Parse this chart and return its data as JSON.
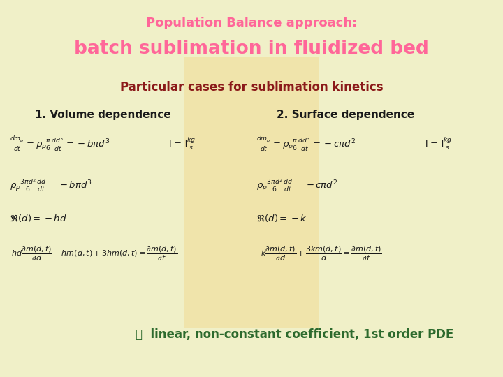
{
  "bg_color": "#f0f0c8",
  "title_line1": "Population Balance approach:",
  "title_line2": "batch sublimation in fluidized bed",
  "title_color": "#ff6699",
  "subtitle": "Particular cases for sublimation kinetics",
  "subtitle_color": "#8b1a1a",
  "col1_header": "1. Volume dependence",
  "col2_header": "2. Surface dependence",
  "header_color": "#1a1a1a",
  "eq_color": "#1a1a1a",
  "bottom_color": "#2d6a2d",
  "bottom_symbol": "ⓘ",
  "bottom_text": "  linear, non-constant coefficient, 1st order PDE",
  "box_color": "#f0dfa0"
}
